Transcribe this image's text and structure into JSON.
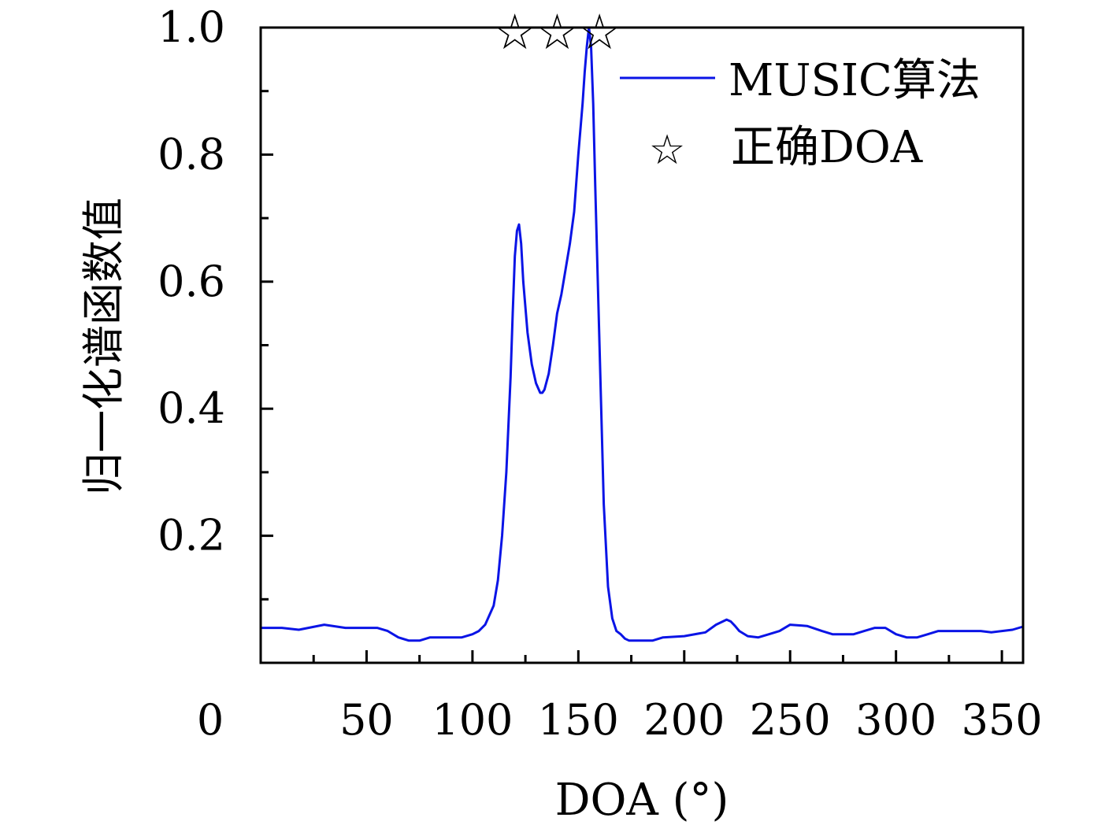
{
  "chart_data": {
    "type": "line",
    "title": "",
    "xlabel": "DOA (°)",
    "ylabel": "归一化谱函数值",
    "xlim": [
      0,
      360
    ],
    "ylim": [
      0,
      1.0
    ],
    "x_ticks": [
      0,
      50,
      100,
      150,
      200,
      250,
      300,
      350
    ],
    "x_tick_labels": [
      "0",
      "50",
      "100",
      "150",
      "200",
      "250",
      "300",
      "350"
    ],
    "y_ticks": [
      0.2,
      0.4,
      0.6,
      0.8,
      1.0
    ],
    "y_tick_labels": [
      "0.2",
      "0.4",
      "0.6",
      "0.8",
      "1.0"
    ],
    "grid": false,
    "legend_position": "top-right",
    "series": [
      {
        "name": "MUSIC算法",
        "color": "#0a14e6",
        "x": [
          0,
          10,
          18,
          30,
          40,
          50,
          55,
          60,
          65,
          70,
          75,
          80,
          90,
          95,
          100,
          103,
          106,
          110,
          112,
          114,
          116,
          118,
          119,
          120,
          121,
          122,
          123,
          124,
          126,
          128,
          130,
          132,
          133,
          134,
          136,
          138,
          140,
          142,
          144,
          146,
          148,
          150,
          152,
          153,
          154,
          155,
          156,
          157,
          158,
          160,
          162,
          164,
          166,
          168,
          170,
          172,
          174,
          176,
          180,
          185,
          190,
          200,
          210,
          215,
          220,
          222,
          224,
          226,
          230,
          235,
          240,
          245,
          250,
          258,
          265,
          270,
          280,
          285,
          290,
          295,
          300,
          305,
          310,
          315,
          320,
          330,
          340,
          345,
          350,
          355,
          360
        ],
        "values": [
          0.055,
          0.055,
          0.052,
          0.06,
          0.055,
          0.055,
          0.055,
          0.05,
          0.04,
          0.035,
          0.035,
          0.04,
          0.04,
          0.04,
          0.045,
          0.05,
          0.06,
          0.09,
          0.13,
          0.2,
          0.3,
          0.45,
          0.55,
          0.64,
          0.68,
          0.69,
          0.66,
          0.6,
          0.52,
          0.47,
          0.44,
          0.425,
          0.425,
          0.43,
          0.455,
          0.5,
          0.55,
          0.58,
          0.62,
          0.66,
          0.71,
          0.8,
          0.88,
          0.93,
          0.97,
          1.0,
          0.97,
          0.88,
          0.75,
          0.5,
          0.25,
          0.12,
          0.07,
          0.05,
          0.045,
          0.038,
          0.035,
          0.035,
          0.035,
          0.035,
          0.04,
          0.042,
          0.048,
          0.06,
          0.068,
          0.065,
          0.058,
          0.05,
          0.042,
          0.04,
          0.045,
          0.05,
          0.06,
          0.058,
          0.05,
          0.045,
          0.045,
          0.05,
          0.055,
          0.055,
          0.045,
          0.04,
          0.04,
          0.045,
          0.05,
          0.05,
          0.05,
          0.048,
          0.05,
          0.052,
          0.057
        ]
      }
    ],
    "markers": {
      "name": "正确DOA",
      "symbol": "☆",
      "x": [
        120,
        140,
        160
      ],
      "y": [
        1.0,
        1.0,
        1.0
      ]
    }
  }
}
